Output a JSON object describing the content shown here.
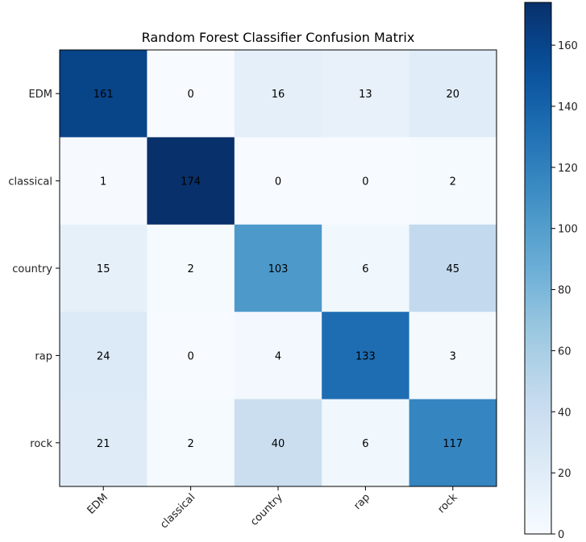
{
  "chart_data": {
    "type": "heatmap",
    "title": "Random Forest Classifier Confusion Matrix",
    "xlabel": "",
    "ylabel": "",
    "x_categories": [
      "EDM",
      "classical",
      "country",
      "rap",
      "rock"
    ],
    "y_categories": [
      "EDM",
      "classical",
      "country",
      "rap",
      "rock"
    ],
    "values": [
      [
        161,
        0,
        16,
        13,
        20
      ],
      [
        1,
        174,
        0,
        0,
        2
      ],
      [
        15,
        2,
        103,
        6,
        45
      ],
      [
        24,
        0,
        4,
        133,
        3
      ],
      [
        21,
        2,
        40,
        6,
        117
      ]
    ],
    "colormap": "Blues",
    "color_range": [
      0,
      174
    ],
    "colorbar": {
      "ticks": [
        0,
        20,
        40,
        60,
        80,
        100,
        120,
        140,
        160
      ],
      "tick_labels": [
        "0",
        "20",
        "40",
        "60",
        "80",
        "100",
        "120",
        "140",
        "160"
      ]
    },
    "x_tick_rotation_deg": 45,
    "grid": false
  }
}
